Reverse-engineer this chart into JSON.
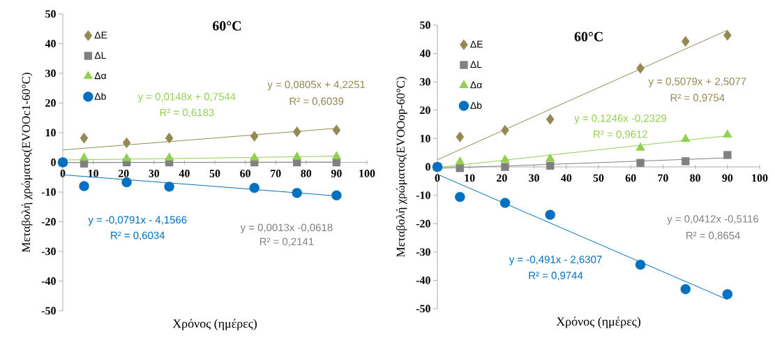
{
  "chart_data": [
    {
      "type": "scatter",
      "title": "60°C",
      "xlabel": "Χρόνος (ημέρες)",
      "ylabel": "Μεταβολή χρώματος(EVOOc1-60°C)",
      "x": [
        0,
        7,
        21,
        35,
        63,
        77,
        90
      ],
      "xlim": [
        0,
        100
      ],
      "ylim": [
        -50,
        50
      ],
      "xticks": [
        0,
        10,
        20,
        30,
        40,
        50,
        60,
        70,
        80,
        90,
        100
      ],
      "yticks": [
        -50,
        -40,
        -30,
        -20,
        -10,
        0,
        10,
        20,
        30,
        40,
        50
      ],
      "legend": "top left",
      "series": [
        {
          "name": "ΔE",
          "marker": "diamond",
          "color": "#938953",
          "values": [
            null,
            8.2,
            6.6,
            8.2,
            8.8,
            10.3,
            10.9
          ]
        },
        {
          "name": "ΔL",
          "marker": "square",
          "color": "#808080",
          "values": [
            0,
            -0.4,
            0,
            0,
            0,
            0,
            0
          ]
        },
        {
          "name": "Δα",
          "marker": "triangle",
          "color": "#92d050",
          "values": [
            0,
            1.5,
            1.3,
            1.5,
            1.5,
            1.8,
            2.0
          ]
        },
        {
          "name": "Δb",
          "marker": "circle",
          "color": "#0070c0",
          "values": [
            0,
            -8.0,
            -6.7,
            -8.2,
            -8.6,
            -10.3,
            -11.1
          ]
        },
        {
          "type": "line",
          "line_style": "solid",
          "color": "#938953",
          "x": [
            0,
            45,
            90
          ],
          "values": [
            4.2,
            7.8,
            11.5
          ]
        },
        {
          "type": "line",
          "line_style": "solid",
          "color": "#808080",
          "x": [
            0,
            45,
            90
          ],
          "values": [
            -0.1,
            0,
            0.1
          ]
        },
        {
          "type": "line",
          "line_style": "solid",
          "color": "#92d050",
          "x": [
            0,
            45,
            90
          ],
          "values": [
            0.8,
            1.4,
            2.1
          ]
        },
        {
          "type": "line",
          "line_style": "solid",
          "color": "#0070c0",
          "x": [
            0,
            45,
            90
          ],
          "values": [
            -4.2,
            -7.7,
            -11.3
          ]
        }
      ],
      "annotations": [
        "y = 0,0805x  + 4,2251",
        "R² = 0,6039",
        "y = 0,0013x  -0,0618",
        "R² = 0,2141",
        "y = 0,0148x  + 0,7544",
        "R² = 0,6183",
        "y = -0,0791x  - 4,1566",
        "R² = 0,6034"
      ]
    },
    {
      "type": "scatter",
      "title": "60°C",
      "xlabel": "Χρόνος (ημέρες)",
      "ylabel": "Μεταβολή χρώματος(EVOOop-60°C)",
      "x": [
        0,
        7,
        21,
        35,
        63,
        77,
        90
      ],
      "xlim": [
        0,
        100
      ],
      "ylim": [
        -50,
        50
      ],
      "xticks": [
        0,
        10,
        20,
        30,
        40,
        50,
        60,
        70,
        80,
        90,
        100
      ],
      "yticks": [
        -50,
        -40,
        -30,
        -20,
        -10,
        0,
        10,
        20,
        30,
        40,
        50
      ],
      "legend": "top left",
      "series": [
        {
          "name": "ΔE",
          "marker": "diamond",
          "color": "#938953",
          "values": [
            null,
            10.6,
            12.9,
            16.8,
            34.8,
            44.3,
            46.4
          ]
        },
        {
          "name": "ΔL",
          "marker": "square",
          "color": "#808080",
          "values": [
            0,
            -0.4,
            0,
            0.4,
            1.4,
            2.0,
            4.2
          ]
        },
        {
          "name": "Δα",
          "marker": "triangle",
          "color": "#92d050",
          "values": [
            0,
            1.8,
            2.5,
            2.9,
            6.7,
            9.8,
            11.3
          ]
        },
        {
          "name": "Δb",
          "marker": "circle",
          "color": "#0070c0",
          "values": [
            0,
            -10.6,
            -12.7,
            -16.9,
            -34.5,
            -43.1,
            -44.9
          ]
        },
        {
          "type": "line",
          "line_style": "solid",
          "color": "#938953",
          "x": [
            0,
            45,
            90
          ],
          "values": [
            2.5,
            25.4,
            48.2
          ]
        },
        {
          "type": "line",
          "line_style": "solid",
          "color": "#808080",
          "x": [
            0,
            45,
            90
          ],
          "values": [
            -0.5,
            1.3,
            3.2
          ]
        },
        {
          "type": "line",
          "line_style": "solid",
          "color": "#92d050",
          "x": [
            0,
            45,
            90
          ],
          "values": [
            -0.2,
            5.4,
            11.0
          ]
        },
        {
          "type": "line",
          "line_style": "solid",
          "color": "#0070c0",
          "x": [
            0,
            45,
            90
          ],
          "values": [
            -2.6,
            -24.7,
            -46.8
          ]
        }
      ],
      "annotations": [
        "y = 0,5079x  + 2,5077",
        "R² = 0,9754",
        "y = 0,0412x  -0,5116",
        "R² = 0,8654",
        "y = 0,1246x  -0,2329",
        "R² = 0,9612",
        "y = -0,491x  - 2,6307",
        "R² = 0,9744"
      ]
    }
  ]
}
